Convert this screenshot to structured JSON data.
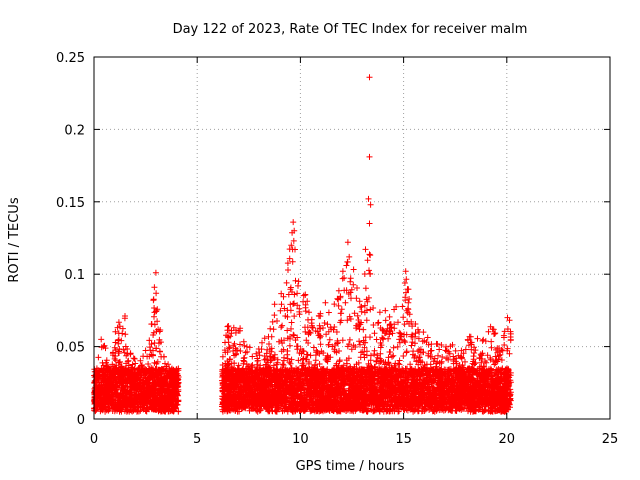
{
  "chart_data": {
    "type": "scatter",
    "title": "Day 122 of 2023, Rate Of TEC Index for receiver malm",
    "xlabel": "GPS time / hours",
    "ylabel": "ROTI / TECUs",
    "xlim": [
      0,
      25
    ],
    "ylim": [
      0,
      0.25
    ],
    "xticks": [
      "0",
      "5",
      "10",
      "15",
      "20",
      "25"
    ],
    "yticks": [
      "0",
      "0.05",
      "0.1",
      "0.15",
      "0.2",
      "0.25"
    ],
    "grid": true,
    "marker": "+",
    "marker_color": "#ff0000",
    "segments": [
      {
        "x_start": 0.0,
        "x_end": 4.1
      },
      {
        "x_start": 6.2,
        "x_end": 20.2
      }
    ],
    "envelope": [
      {
        "x": 0.1,
        "y": 0.035
      },
      {
        "x": 0.4,
        "y": 0.06
      },
      {
        "x": 0.7,
        "y": 0.04
      },
      {
        "x": 1.2,
        "y": 0.07
      },
      {
        "x": 1.4,
        "y": 0.08
      },
      {
        "x": 1.8,
        "y": 0.045
      },
      {
        "x": 2.3,
        "y": 0.04
      },
      {
        "x": 2.7,
        "y": 0.065
      },
      {
        "x": 3.0,
        "y": 0.1
      },
      {
        "x": 3.3,
        "y": 0.045
      },
      {
        "x": 3.8,
        "y": 0.035
      },
      {
        "x": 4.0,
        "y": 0.03
      },
      {
        "x": 6.3,
        "y": 0.055
      },
      {
        "x": 6.6,
        "y": 0.072
      },
      {
        "x": 7.0,
        "y": 0.065
      },
      {
        "x": 7.5,
        "y": 0.05
      },
      {
        "x": 8.0,
        "y": 0.05
      },
      {
        "x": 8.5,
        "y": 0.065
      },
      {
        "x": 8.8,
        "y": 0.085
      },
      {
        "x": 9.2,
        "y": 0.09
      },
      {
        "x": 9.6,
        "y": 0.135
      },
      {
        "x": 9.9,
        "y": 0.1
      },
      {
        "x": 10.3,
        "y": 0.085
      },
      {
        "x": 10.7,
        "y": 0.06
      },
      {
        "x": 11.1,
        "y": 0.085
      },
      {
        "x": 11.5,
        "y": 0.075
      },
      {
        "x": 11.9,
        "y": 0.09
      },
      {
        "x": 12.3,
        "y": 0.122
      },
      {
        "x": 12.6,
        "y": 0.105
      },
      {
        "x": 13.0,
        "y": 0.085
      },
      {
        "x": 13.3,
        "y": 0.15
      },
      {
        "x": 13.6,
        "y": 0.07
      },
      {
        "x": 14.1,
        "y": 0.08
      },
      {
        "x": 14.5,
        "y": 0.075
      },
      {
        "x": 14.9,
        "y": 0.085
      },
      {
        "x": 15.1,
        "y": 0.102
      },
      {
        "x": 15.5,
        "y": 0.07
      },
      {
        "x": 16.0,
        "y": 0.06
      },
      {
        "x": 16.5,
        "y": 0.05
      },
      {
        "x": 17.1,
        "y": 0.063
      },
      {
        "x": 17.6,
        "y": 0.045
      },
      {
        "x": 18.3,
        "y": 0.06
      },
      {
        "x": 18.8,
        "y": 0.055
      },
      {
        "x": 19.3,
        "y": 0.068
      },
      {
        "x": 19.7,
        "y": 0.045
      },
      {
        "x": 20.0,
        "y": 0.073
      }
    ],
    "outliers": [
      {
        "x": 13.35,
        "y": 0.236
      },
      {
        "x": 13.35,
        "y": 0.181
      },
      {
        "x": 13.3,
        "y": 0.152
      },
      {
        "x": 13.4,
        "y": 0.148
      },
      {
        "x": 13.35,
        "y": 0.135
      },
      {
        "x": 9.65,
        "y": 0.136
      },
      {
        "x": 9.7,
        "y": 0.13
      },
      {
        "x": 12.3,
        "y": 0.122
      },
      {
        "x": 3.0,
        "y": 0.101
      },
      {
        "x": 15.1,
        "y": 0.102
      }
    ]
  }
}
